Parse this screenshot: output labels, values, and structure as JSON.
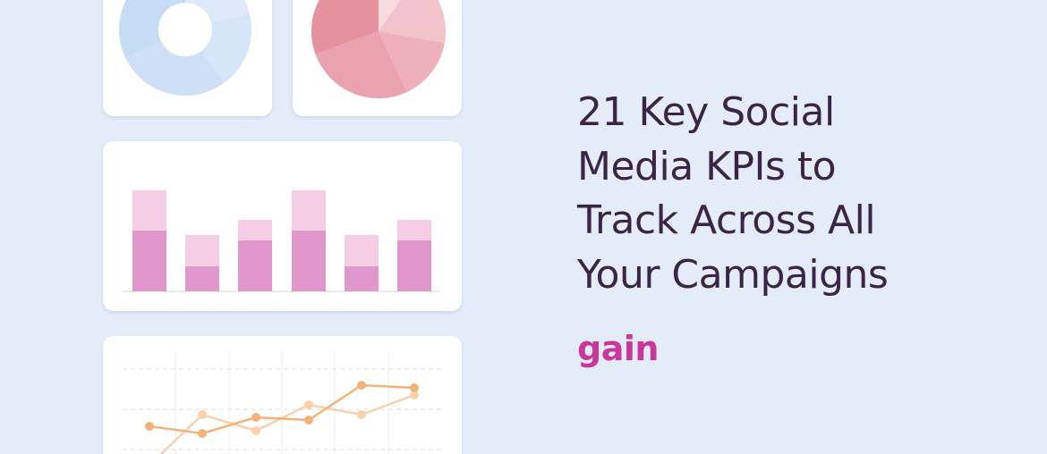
{
  "title": {
    "lines": [
      "21 Key Social",
      "Media KPIs to",
      "Track Across All",
      "Your Campaigns"
    ]
  },
  "logo": {
    "text": "gain"
  }
}
